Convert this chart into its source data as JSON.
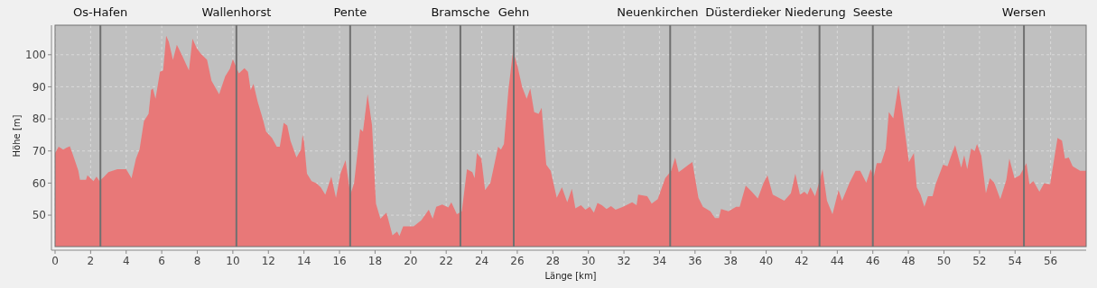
{
  "chart_data": {
    "type": "area",
    "xlabel": "Länge [km]",
    "ylabel": "Höhe [m]",
    "xlim": [
      0,
      58
    ],
    "xticks": [
      0,
      2,
      4,
      6,
      8,
      10,
      12,
      14,
      16,
      18,
      20,
      22,
      24,
      26,
      28,
      30,
      32,
      34,
      36,
      38,
      40,
      42,
      44,
      46,
      48,
      50,
      52,
      54,
      56
    ],
    "ylim": [
      40.2,
      109.2
    ],
    "yticks": [
      50,
      60,
      70,
      80,
      90,
      100
    ],
    "grid": true,
    "ref_lines": [
      {
        "axis": "x",
        "value": 2.55,
        "label": "Os-Hafen",
        "color": "#707070"
      },
      {
        "axis": "x",
        "value": 10.2,
        "label": "Wallenhorst",
        "color": "#707070"
      },
      {
        "axis": "x",
        "value": 16.6,
        "label": "Pente",
        "color": "#707070"
      },
      {
        "axis": "x",
        "value": 22.8,
        "label": "Bramsche",
        "color": "#707070"
      },
      {
        "axis": "x",
        "value": 25.8,
        "label": "Gehn",
        "color": "#707070"
      },
      {
        "axis": "x",
        "value": 34.6,
        "label": "Neuenkirchen",
        "color": "#707070"
      },
      {
        "axis": "x",
        "value": 43.0,
        "label": "Düsterdieker Niederung",
        "color": "#707070"
      },
      {
        "axis": "x",
        "value": 46.0,
        "label": "Seeste",
        "color": "#707070"
      },
      {
        "axis": "x",
        "value": 54.5,
        "label": "Wersen",
        "color": "#707070"
      }
    ],
    "series": [
      {
        "color": "#e87878",
        "x": [
          0,
          0.2,
          0.46,
          0.63,
          0.83,
          0.97,
          1.31,
          1.4,
          1.74,
          1.82,
          2.16,
          2.33,
          2.5,
          2.76,
          3.0,
          3.5,
          4.0,
          4.3,
          4.55,
          4.75,
          5.0,
          5.26,
          5.4,
          5.5,
          5.65,
          5.9,
          6.08,
          6.25,
          6.4,
          6.63,
          6.85,
          7.1,
          7.53,
          7.73,
          7.96,
          8.2,
          8.55,
          8.8,
          9.23,
          9.57,
          9.83,
          10.0,
          10.34,
          10.65,
          10.85,
          11.0,
          11.16,
          11.4,
          11.7,
          11.87,
          12.2,
          12.47,
          12.64,
          12.86,
          13.06,
          13.24,
          13.58,
          13.83,
          13.92,
          14.0,
          14.17,
          14.43,
          14.69,
          14.94,
          15.2,
          15.54,
          15.8,
          16.05,
          16.34,
          16.61,
          16.82,
          17.16,
          17.32,
          17.58,
          17.83,
          18.05,
          18.3,
          18.64,
          18.98,
          19.24,
          19.37,
          19.58,
          20.17,
          20.6,
          21.02,
          21.24,
          21.44,
          21.78,
          22.12,
          22.29,
          22.6,
          22.88,
          23.17,
          23.47,
          23.6,
          23.73,
          23.98,
          24.19,
          24.49,
          24.92,
          25.08,
          25.25,
          25.5,
          25.76,
          26.01,
          26.27,
          26.53,
          26.73,
          26.95,
          27.2,
          27.37,
          27.63,
          27.88,
          28.22,
          28.51,
          28.81,
          29.07,
          29.27,
          29.58,
          29.83,
          30.08,
          30.31,
          30.51,
          30.76,
          31.02,
          31.27,
          31.53,
          31.95,
          32.46,
          32.71,
          32.8,
          33.31,
          33.56,
          33.9,
          34.32,
          34.66,
          34.88,
          35.08,
          35.42,
          35.85,
          36.19,
          36.44,
          36.86,
          37.12,
          37.34,
          37.46,
          37.88,
          38.31,
          38.51,
          38.85,
          39.19,
          39.53,
          39.86,
          40.07,
          40.37,
          40.71,
          41.02,
          41.39,
          41.64,
          41.9,
          42.15,
          42.32,
          42.49,
          42.75,
          43.0,
          43.17,
          43.42,
          43.73,
          44.07,
          44.27,
          44.69,
          45.03,
          45.29,
          45.63,
          45.88,
          46.05,
          46.22,
          46.47,
          46.73,
          46.9,
          47.15,
          47.44,
          47.66,
          48.03,
          48.31,
          48.47,
          48.68,
          48.9,
          49.1,
          49.36,
          49.53,
          49.95,
          50.2,
          50.37,
          50.63,
          50.97,
          51.14,
          51.31,
          51.53,
          51.73,
          51.86,
          52.1,
          52.36,
          52.58,
          52.83,
          53.17,
          53.51,
          53.68,
          53.97,
          54.27,
          54.64,
          54.81,
          55.03,
          55.37,
          55.63,
          55.97,
          56.39,
          56.64,
          56.81,
          57.02,
          57.24,
          57.66,
          58.0
        ],
        "values": [
          69.4,
          71.3,
          70.4,
          71,
          71.5,
          69.4,
          63.8,
          61,
          61,
          62.4,
          60.6,
          62,
          60.6,
          62,
          63.4,
          64.3,
          64.3,
          61.5,
          67.6,
          70.4,
          79.3,
          81.6,
          89,
          89.5,
          86.3,
          94.7,
          95.1,
          105.9,
          104,
          98.4,
          103.1,
          100.3,
          95.1,
          105,
          102.1,
          100.3,
          98.4,
          91.9,
          87.7,
          93.3,
          95.6,
          98.6,
          94.2,
          95.8,
          94.7,
          89,
          90.9,
          85.3,
          79.7,
          76,
          74.1,
          71.3,
          71.3,
          78.8,
          77.9,
          73.2,
          68,
          70.4,
          75,
          73.2,
          62.9,
          60.6,
          60,
          58.7,
          56.4,
          62,
          55.4,
          62.9,
          67.1,
          56.4,
          60,
          76.9,
          76,
          87.7,
          77.9,
          53.6,
          48.9,
          50.8,
          43.7,
          44.9,
          43.5,
          46.5,
          46.5,
          48.4,
          51.7,
          48.9,
          52.6,
          53.3,
          52.4,
          54,
          50.3,
          51.2,
          64.3,
          63.4,
          61.5,
          69.4,
          67.6,
          57.8,
          60.1,
          71.3,
          70.4,
          72.2,
          89,
          101.2,
          96.5,
          90,
          86.3,
          89.5,
          82.1,
          81.6,
          83.5,
          65.7,
          63.8,
          55.4,
          58.7,
          54,
          58.2,
          52.1,
          53.1,
          51.7,
          52.6,
          50.8,
          53.8,
          53.1,
          51.9,
          52.8,
          51.7,
          52.6,
          54,
          53.1,
          56.4,
          55.9,
          53.6,
          55,
          61.5,
          63.8,
          68,
          63.4,
          64.8,
          66.6,
          55.4,
          52.6,
          51.2,
          49.1,
          49.1,
          51.9,
          51.2,
          52.6,
          52.6,
          59.2,
          57.3,
          55.2,
          60.1,
          62.4,
          56.4,
          55.4,
          54.5,
          56.8,
          62.9,
          56.4,
          57.3,
          56.4,
          58.7,
          55.9,
          60.6,
          64.3,
          54.5,
          50.3,
          57.8,
          54.5,
          60.1,
          63.8,
          63.8,
          60.1,
          64.3,
          62,
          66.2,
          66.2,
          70.8,
          82.1,
          80.2,
          90.5,
          82.1,
          66.6,
          69.4,
          58.7,
          56.4,
          52.6,
          55.9,
          55.9,
          59.6,
          65.7,
          65.2,
          68,
          71.8,
          64.8,
          68.7,
          64.3,
          70.8,
          69.9,
          72.2,
          68.5,
          56.8,
          61.5,
          60.1,
          55,
          61,
          67.6,
          61.5,
          62.4,
          66.2,
          59.6,
          60.6,
          57.3,
          59.9,
          59.6,
          74.1,
          73.2,
          67.6,
          68,
          65.2,
          63.8,
          63.8
        ]
      }
    ]
  }
}
